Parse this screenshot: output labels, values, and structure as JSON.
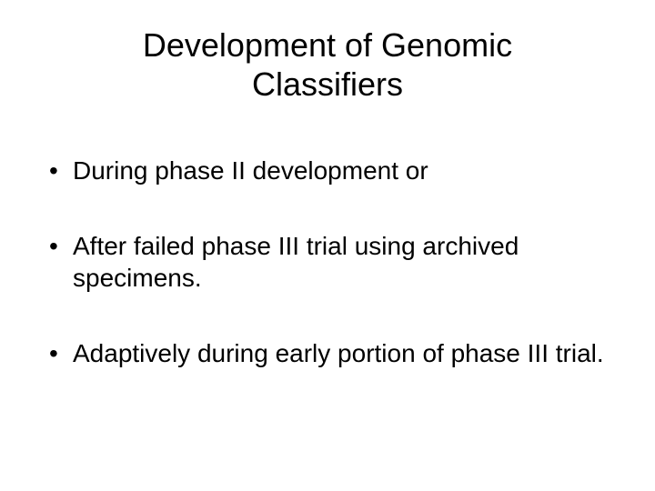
{
  "slide": {
    "title": "Development of Genomic Classifiers",
    "bullets": [
      "During phase II development or",
      "After failed phase III trial using archived specimens.",
      "Adaptively during early portion of phase III trial."
    ],
    "background_color": "#ffffff",
    "text_color": "#000000",
    "title_fontsize": 36,
    "body_fontsize": 28,
    "font_family": "Arial"
  }
}
